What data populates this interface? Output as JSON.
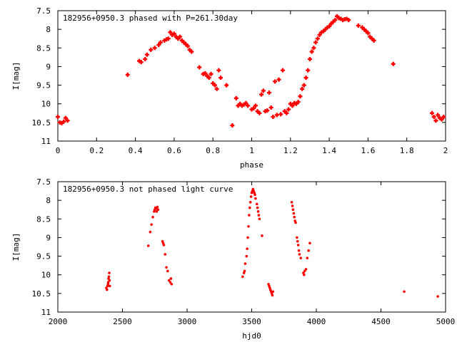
{
  "chart_data": [
    {
      "type": "scatter",
      "title": "182956+0950.3 phased with P=261.30day",
      "xlabel": "phase",
      "ylabel": "I[mag]",
      "xlim": [
        0,
        2
      ],
      "ylim": [
        7.5,
        11
      ],
      "y_inverted": true,
      "x_ticks": [
        0,
        0.2,
        0.4,
        0.6,
        0.8,
        1,
        1.2,
        1.4,
        1.6,
        1.8,
        2
      ],
      "x_tick_labels": [
        "0",
        "0.2",
        "0.4",
        "0.6",
        "0.8",
        "1",
        "1.2",
        "1.4",
        "1.6",
        "1.8",
        "2"
      ],
      "y_ticks": [
        7.5,
        8,
        8.5,
        9,
        9.5,
        10,
        10.5,
        11
      ],
      "y_tick_labels": [
        "7.5",
        "8",
        "8.5",
        "9",
        "9.5",
        "10",
        "10.5",
        "11"
      ],
      "marker": "plus",
      "color": "#ff0000",
      "points": [
        [
          0.0,
          10.35
        ],
        [
          0.01,
          10.5
        ],
        [
          0.02,
          10.52
        ],
        [
          0.03,
          10.48
        ],
        [
          0.04,
          10.38
        ],
        [
          0.05,
          10.45
        ],
        [
          0.36,
          9.22
        ],
        [
          0.42,
          8.85
        ],
        [
          0.43,
          8.88
        ],
        [
          0.45,
          8.8
        ],
        [
          0.46,
          8.68
        ],
        [
          0.48,
          8.55
        ],
        [
          0.5,
          8.5
        ],
        [
          0.52,
          8.42
        ],
        [
          0.53,
          8.35
        ],
        [
          0.55,
          8.3
        ],
        [
          0.56,
          8.27
        ],
        [
          0.57,
          8.25
        ],
        [
          0.58,
          8.08
        ],
        [
          0.59,
          8.15
        ],
        [
          0.6,
          8.12
        ],
        [
          0.61,
          8.2
        ],
        [
          0.62,
          8.25
        ],
        [
          0.63,
          8.2
        ],
        [
          0.64,
          8.3
        ],
        [
          0.65,
          8.35
        ],
        [
          0.66,
          8.4
        ],
        [
          0.67,
          8.45
        ],
        [
          0.68,
          8.55
        ],
        [
          0.69,
          8.6
        ],
        [
          0.73,
          9.02
        ],
        [
          0.75,
          9.2
        ],
        [
          0.76,
          9.18
        ],
        [
          0.77,
          9.25
        ],
        [
          0.78,
          9.3
        ],
        [
          0.79,
          9.2
        ],
        [
          0.8,
          9.45
        ],
        [
          0.81,
          9.5
        ],
        [
          0.82,
          9.6
        ],
        [
          0.83,
          9.1
        ],
        [
          0.84,
          9.3
        ],
        [
          0.87,
          9.5
        ],
        [
          0.9,
          10.58
        ],
        [
          0.92,
          9.85
        ],
        [
          0.93,
          10.05
        ],
        [
          0.94,
          10.0
        ],
        [
          0.95,
          10.05
        ],
        [
          0.96,
          10.02
        ],
        [
          0.97,
          9.98
        ],
        [
          0.98,
          10.05
        ],
        [
          1.0,
          10.15
        ],
        [
          1.01,
          10.12
        ],
        [
          1.02,
          10.05
        ],
        [
          1.03,
          10.2
        ],
        [
          1.04,
          10.25
        ],
        [
          1.05,
          9.75
        ],
        [
          1.06,
          9.65
        ],
        [
          1.07,
          10.2
        ],
        [
          1.08,
          10.18
        ],
        [
          1.09,
          9.7
        ],
        [
          1.1,
          10.1
        ],
        [
          1.11,
          10.35
        ],
        [
          1.12,
          9.4
        ],
        [
          1.13,
          10.3
        ],
        [
          1.14,
          9.35
        ],
        [
          1.15,
          10.28
        ],
        [
          1.16,
          9.1
        ],
        [
          1.17,
          10.2
        ],
        [
          1.18,
          10.25
        ],
        [
          1.19,
          10.15
        ],
        [
          1.2,
          10.0
        ],
        [
          1.21,
          10.05
        ],
        [
          1.22,
          9.98
        ],
        [
          1.23,
          10.0
        ],
        [
          1.24,
          9.95
        ],
        [
          1.25,
          9.8
        ],
        [
          1.26,
          9.6
        ],
        [
          1.27,
          9.5
        ],
        [
          1.28,
          9.3
        ],
        [
          1.29,
          9.1
        ],
        [
          1.3,
          8.8
        ],
        [
          1.31,
          8.6
        ],
        [
          1.32,
          8.5
        ],
        [
          1.33,
          8.35
        ],
        [
          1.34,
          8.25
        ],
        [
          1.35,
          8.15
        ],
        [
          1.36,
          8.08
        ],
        [
          1.37,
          8.05
        ],
        [
          1.38,
          8.0
        ],
        [
          1.39,
          7.95
        ],
        [
          1.4,
          7.92
        ],
        [
          1.41,
          7.85
        ],
        [
          1.42,
          7.8
        ],
        [
          1.43,
          7.75
        ],
        [
          1.44,
          7.65
        ],
        [
          1.45,
          7.7
        ],
        [
          1.46,
          7.72
        ],
        [
          1.47,
          7.75
        ],
        [
          1.48,
          7.73
        ],
        [
          1.49,
          7.72
        ],
        [
          1.5,
          7.75
        ],
        [
          1.55,
          7.9
        ],
        [
          1.57,
          7.95
        ],
        [
          1.58,
          8.0
        ],
        [
          1.59,
          8.05
        ],
        [
          1.6,
          8.1
        ],
        [
          1.61,
          8.2
        ],
        [
          1.62,
          8.25
        ],
        [
          1.63,
          8.3
        ],
        [
          1.73,
          8.93
        ],
        [
          1.93,
          10.25
        ],
        [
          1.94,
          10.35
        ],
        [
          1.95,
          10.45
        ],
        [
          1.96,
          10.3
        ],
        [
          1.97,
          10.38
        ],
        [
          1.98,
          10.42
        ],
        [
          1.99,
          10.35
        ]
      ]
    },
    {
      "type": "scatter",
      "title": "182956+0950.3 not phased light curve",
      "xlabel": "hjd0",
      "ylabel": "I[mag]",
      "xlim": [
        2000,
        5000
      ],
      "ylim": [
        7.5,
        11
      ],
      "y_inverted": true,
      "x_ticks": [
        2000,
        2500,
        3000,
        3500,
        4000,
        4500,
        5000
      ],
      "x_tick_labels": [
        "2000",
        "2500",
        "3000",
        "3500",
        "4000",
        "4500",
        "5000"
      ],
      "y_ticks": [
        7.5,
        8,
        8.5,
        9,
        9.5,
        10,
        10.5,
        11
      ],
      "y_tick_labels": [
        "7.5",
        "8",
        "8.5",
        "9",
        "9.5",
        "10",
        "10.5",
        "11"
      ],
      "marker": "dot",
      "color": "#ff0000",
      "points": [
        [
          2375,
          10.35
        ],
        [
          2380,
          10.4
        ],
        [
          2385,
          10.3
        ],
        [
          2388,
          10.25
        ],
        [
          2390,
          10.2
        ],
        [
          2392,
          10.1
        ],
        [
          2395,
          10.05
        ],
        [
          2398,
          9.95
        ],
        [
          2400,
          10.15
        ],
        [
          2402,
          10.3
        ],
        [
          2700,
          9.22
        ],
        [
          2715,
          8.85
        ],
        [
          2725,
          8.65
        ],
        [
          2735,
          8.45
        ],
        [
          2745,
          8.3
        ],
        [
          2750,
          8.25
        ],
        [
          2755,
          8.2
        ],
        [
          2760,
          8.22
        ],
        [
          2765,
          8.3
        ],
        [
          2770,
          8.18
        ],
        [
          2775,
          8.25
        ],
        [
          2810,
          9.1
        ],
        [
          2815,
          9.15
        ],
        [
          2820,
          9.2
        ],
        [
          2830,
          9.45
        ],
        [
          2840,
          9.8
        ],
        [
          2850,
          9.9
        ],
        [
          2860,
          10.15
        ],
        [
          2870,
          10.2
        ],
        [
          2875,
          10.1
        ],
        [
          2880,
          10.25
        ],
        [
          3430,
          10.05
        ],
        [
          3440,
          9.95
        ],
        [
          3445,
          9.9
        ],
        [
          3450,
          9.7
        ],
        [
          3460,
          9.5
        ],
        [
          3465,
          9.3
        ],
        [
          3470,
          9.0
        ],
        [
          3475,
          8.7
        ],
        [
          3480,
          8.4
        ],
        [
          3485,
          8.2
        ],
        [
          3490,
          8.05
        ],
        [
          3495,
          7.9
        ],
        [
          3500,
          7.8
        ],
        [
          3505,
          7.75
        ],
        [
          3510,
          7.7
        ],
        [
          3515,
          7.75
        ],
        [
          3520,
          7.8
        ],
        [
          3525,
          7.85
        ],
        [
          3530,
          7.95
        ],
        [
          3540,
          8.1
        ],
        [
          3545,
          8.2
        ],
        [
          3550,
          8.3
        ],
        [
          3555,
          8.4
        ],
        [
          3560,
          8.5
        ],
        [
          3580,
          8.95
        ],
        [
          3630,
          10.25
        ],
        [
          3635,
          10.3
        ],
        [
          3640,
          10.35
        ],
        [
          3645,
          10.4
        ],
        [
          3650,
          10.45
        ],
        [
          3655,
          10.5
        ],
        [
          3660,
          10.55
        ],
        [
          3665,
          10.45
        ],
        [
          3810,
          8.05
        ],
        [
          3815,
          8.15
        ],
        [
          3820,
          8.25
        ],
        [
          3825,
          8.35
        ],
        [
          3830,
          8.45
        ],
        [
          3835,
          8.55
        ],
        [
          3840,
          8.6
        ],
        [
          3850,
          9.0
        ],
        [
          3855,
          9.1
        ],
        [
          3860,
          9.2
        ],
        [
          3865,
          9.35
        ],
        [
          3870,
          9.45
        ],
        [
          3880,
          9.55
        ],
        [
          3900,
          9.95
        ],
        [
          3905,
          10.0
        ],
        [
          3910,
          9.9
        ],
        [
          3920,
          9.85
        ],
        [
          3930,
          9.55
        ],
        [
          3940,
          9.35
        ],
        [
          3950,
          9.15
        ],
        [
          4680,
          10.45
        ],
        [
          4940,
          10.58
        ]
      ]
    }
  ]
}
